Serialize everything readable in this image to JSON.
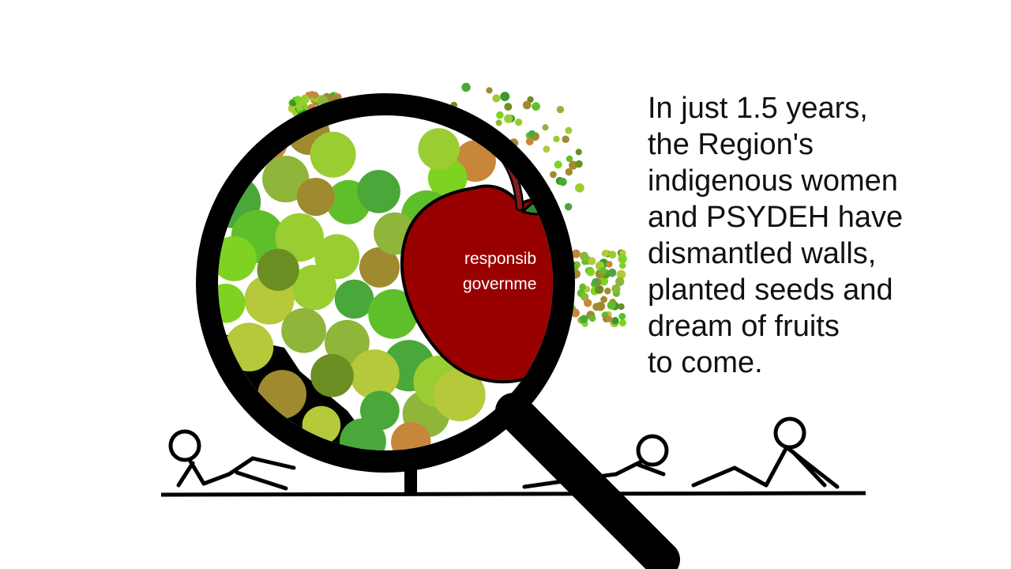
{
  "caption_lines": [
    "In just 1.5 years,",
    "the Region's",
    "indigenous women",
    "and PSYDEH have",
    "dismantled walls,",
    "planted seeds and",
    "dream of fruits",
    "to come."
  ],
  "apple_label": {
    "line1": "responsib",
    "line2": "governme"
  },
  "colors": {
    "apple": "#990000",
    "apple_stem": "#8b1a1a",
    "leaf": "#2e8b2e",
    "outline": "#000000",
    "background": "#ffffff"
  },
  "icons": [
    "magnifying-glass-icon",
    "apple-icon",
    "stick-figure-icon",
    "tree-foliage"
  ]
}
